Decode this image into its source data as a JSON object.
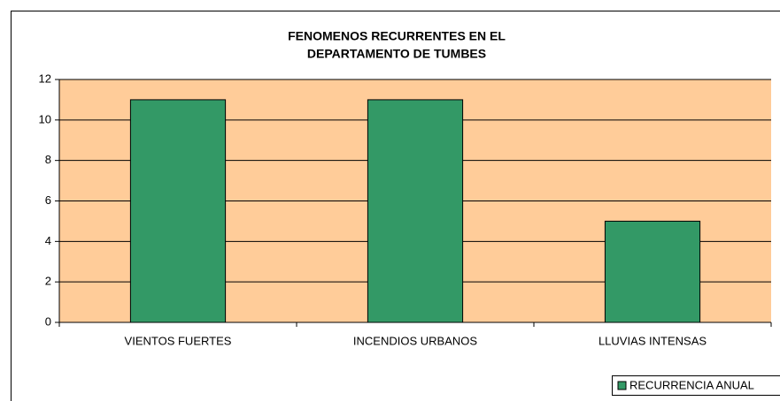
{
  "chart_data": {
    "type": "bar",
    "title": [
      "FENOMENOS RECURRENTES EN EL",
      "DEPARTAMENTO DE TUMBES"
    ],
    "categories": [
      "VIENTOS FUERTES",
      "INCENDIOS URBANOS",
      "LLUVIAS INTENSAS"
    ],
    "series": [
      {
        "name": "RECURRENCIA ANUAL",
        "color": "#339966",
        "values": [
          11,
          11,
          5
        ]
      }
    ],
    "ylim": [
      0,
      12
    ],
    "yticks": [
      0,
      2,
      4,
      6,
      8,
      10,
      12
    ],
    "grid": true,
    "plot_background": "#ffcc99",
    "legend": "bottom-right"
  }
}
